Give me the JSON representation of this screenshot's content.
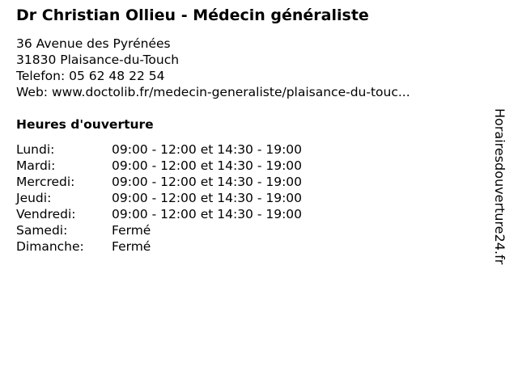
{
  "title": "Dr Christian Ollieu - Médecin généraliste",
  "address": {
    "street": "36 Avenue des Pyrénées",
    "city": "31830 Plaisance-du-Touch",
    "phone": "Telefon: 05 62 48 22 54",
    "web": "Web: www.doctolib.fr/medecin-generaliste/plaisance-du-touc..."
  },
  "hours_heading": "Heures d'ouverture",
  "hours": [
    {
      "day": "Lundi:",
      "time": "09:00 - 12:00 et 14:30 - 19:00"
    },
    {
      "day": "Mardi:",
      "time": "09:00 - 12:00 et 14:30 - 19:00"
    },
    {
      "day": "Mercredi:",
      "time": "09:00 - 12:00 et 14:30 - 19:00"
    },
    {
      "day": "Jeudi:",
      "time": "09:00 - 12:00 et 14:30 - 19:00"
    },
    {
      "day": "Vendredi:",
      "time": "09:00 - 12:00 et 14:30 - 19:00"
    },
    {
      "day": "Samedi:",
      "time": "Fermé"
    },
    {
      "day": "Dimanche:",
      "time": "Fermé"
    }
  ],
  "watermark": "Horairesdouverture24.fr"
}
